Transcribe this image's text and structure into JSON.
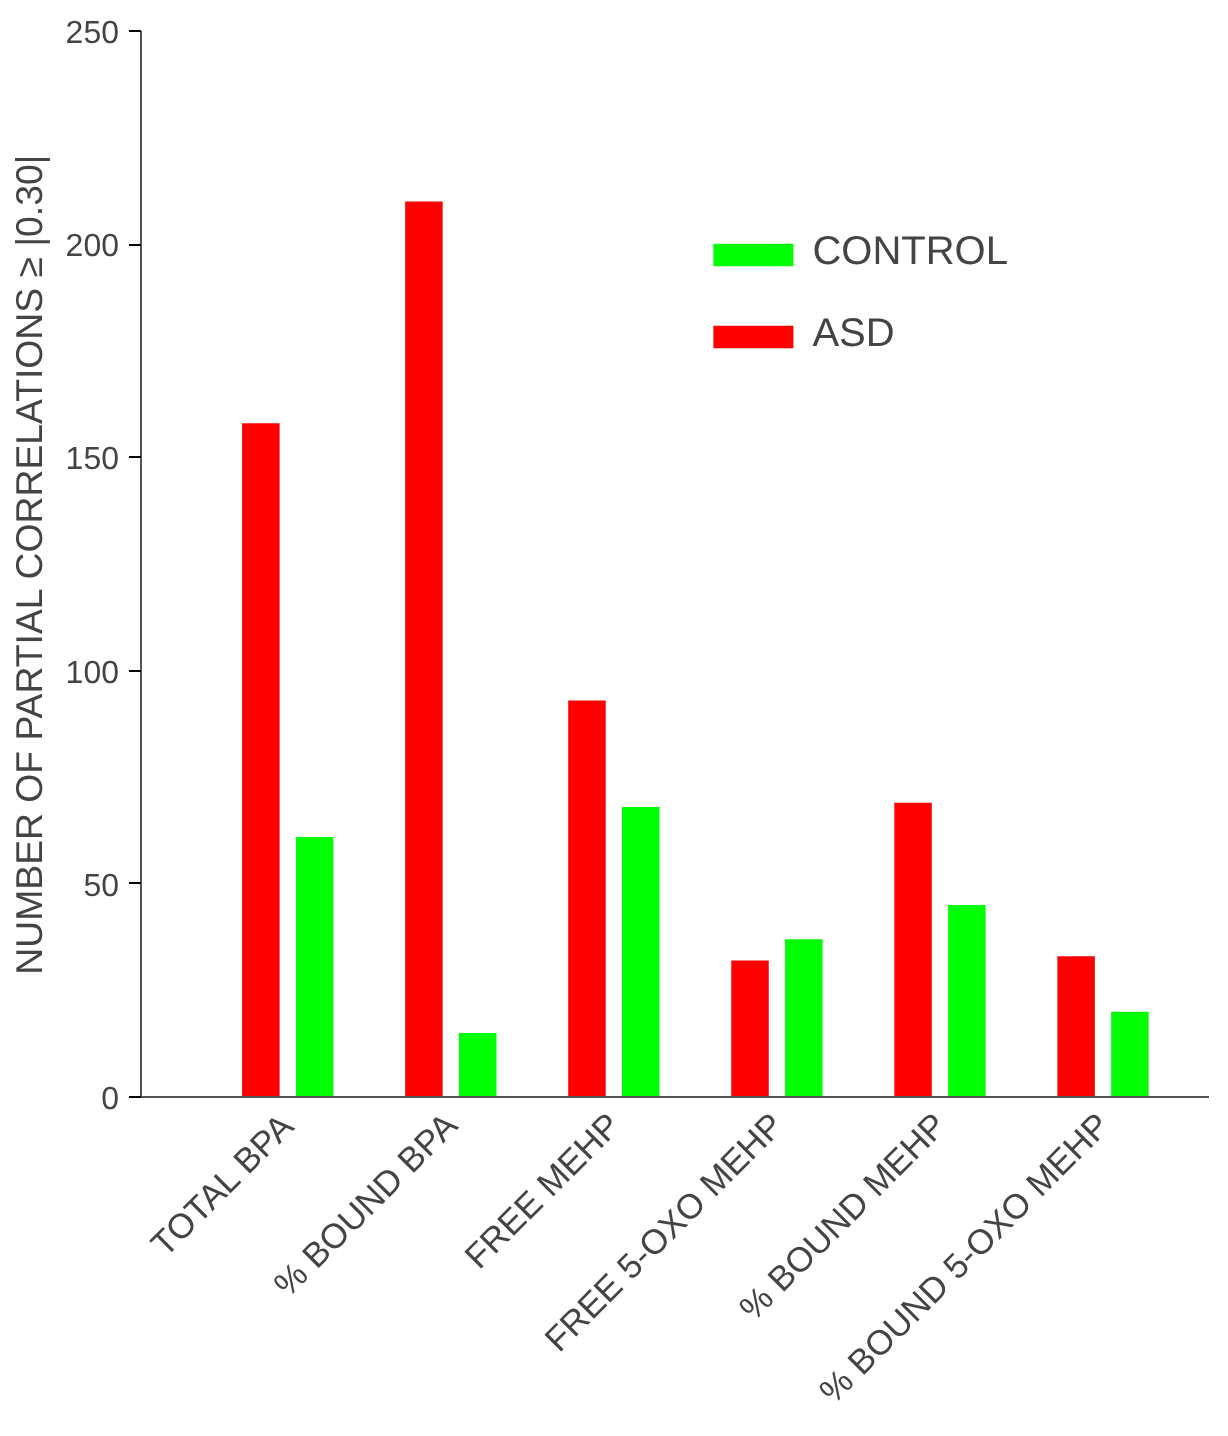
{
  "chart_data": {
    "type": "bar",
    "ylabel": "NUMBER OF PARTIAL CORRELATIONS ≥ |0.30|",
    "categories": [
      "TOTAL BPA",
      "% BOUND BPA",
      "FREE MEHP",
      "FREE 5-OXO MEHP",
      "% BOUND MEHP",
      "% BOUND 5-OXO MEHP"
    ],
    "series": [
      {
        "name": "ASD",
        "color": "#ff0000",
        "values": [
          158,
          210,
          93,
          32,
          69,
          33
        ]
      },
      {
        "name": "CONTROL",
        "color": "#00ff00",
        "values": [
          61,
          15,
          68,
          37,
          45,
          20
        ]
      }
    ],
    "ylim": [
      0,
      250
    ],
    "yticks": [
      0,
      50,
      100,
      150,
      200,
      250
    ],
    "grid": false,
    "legend": "top right"
  }
}
